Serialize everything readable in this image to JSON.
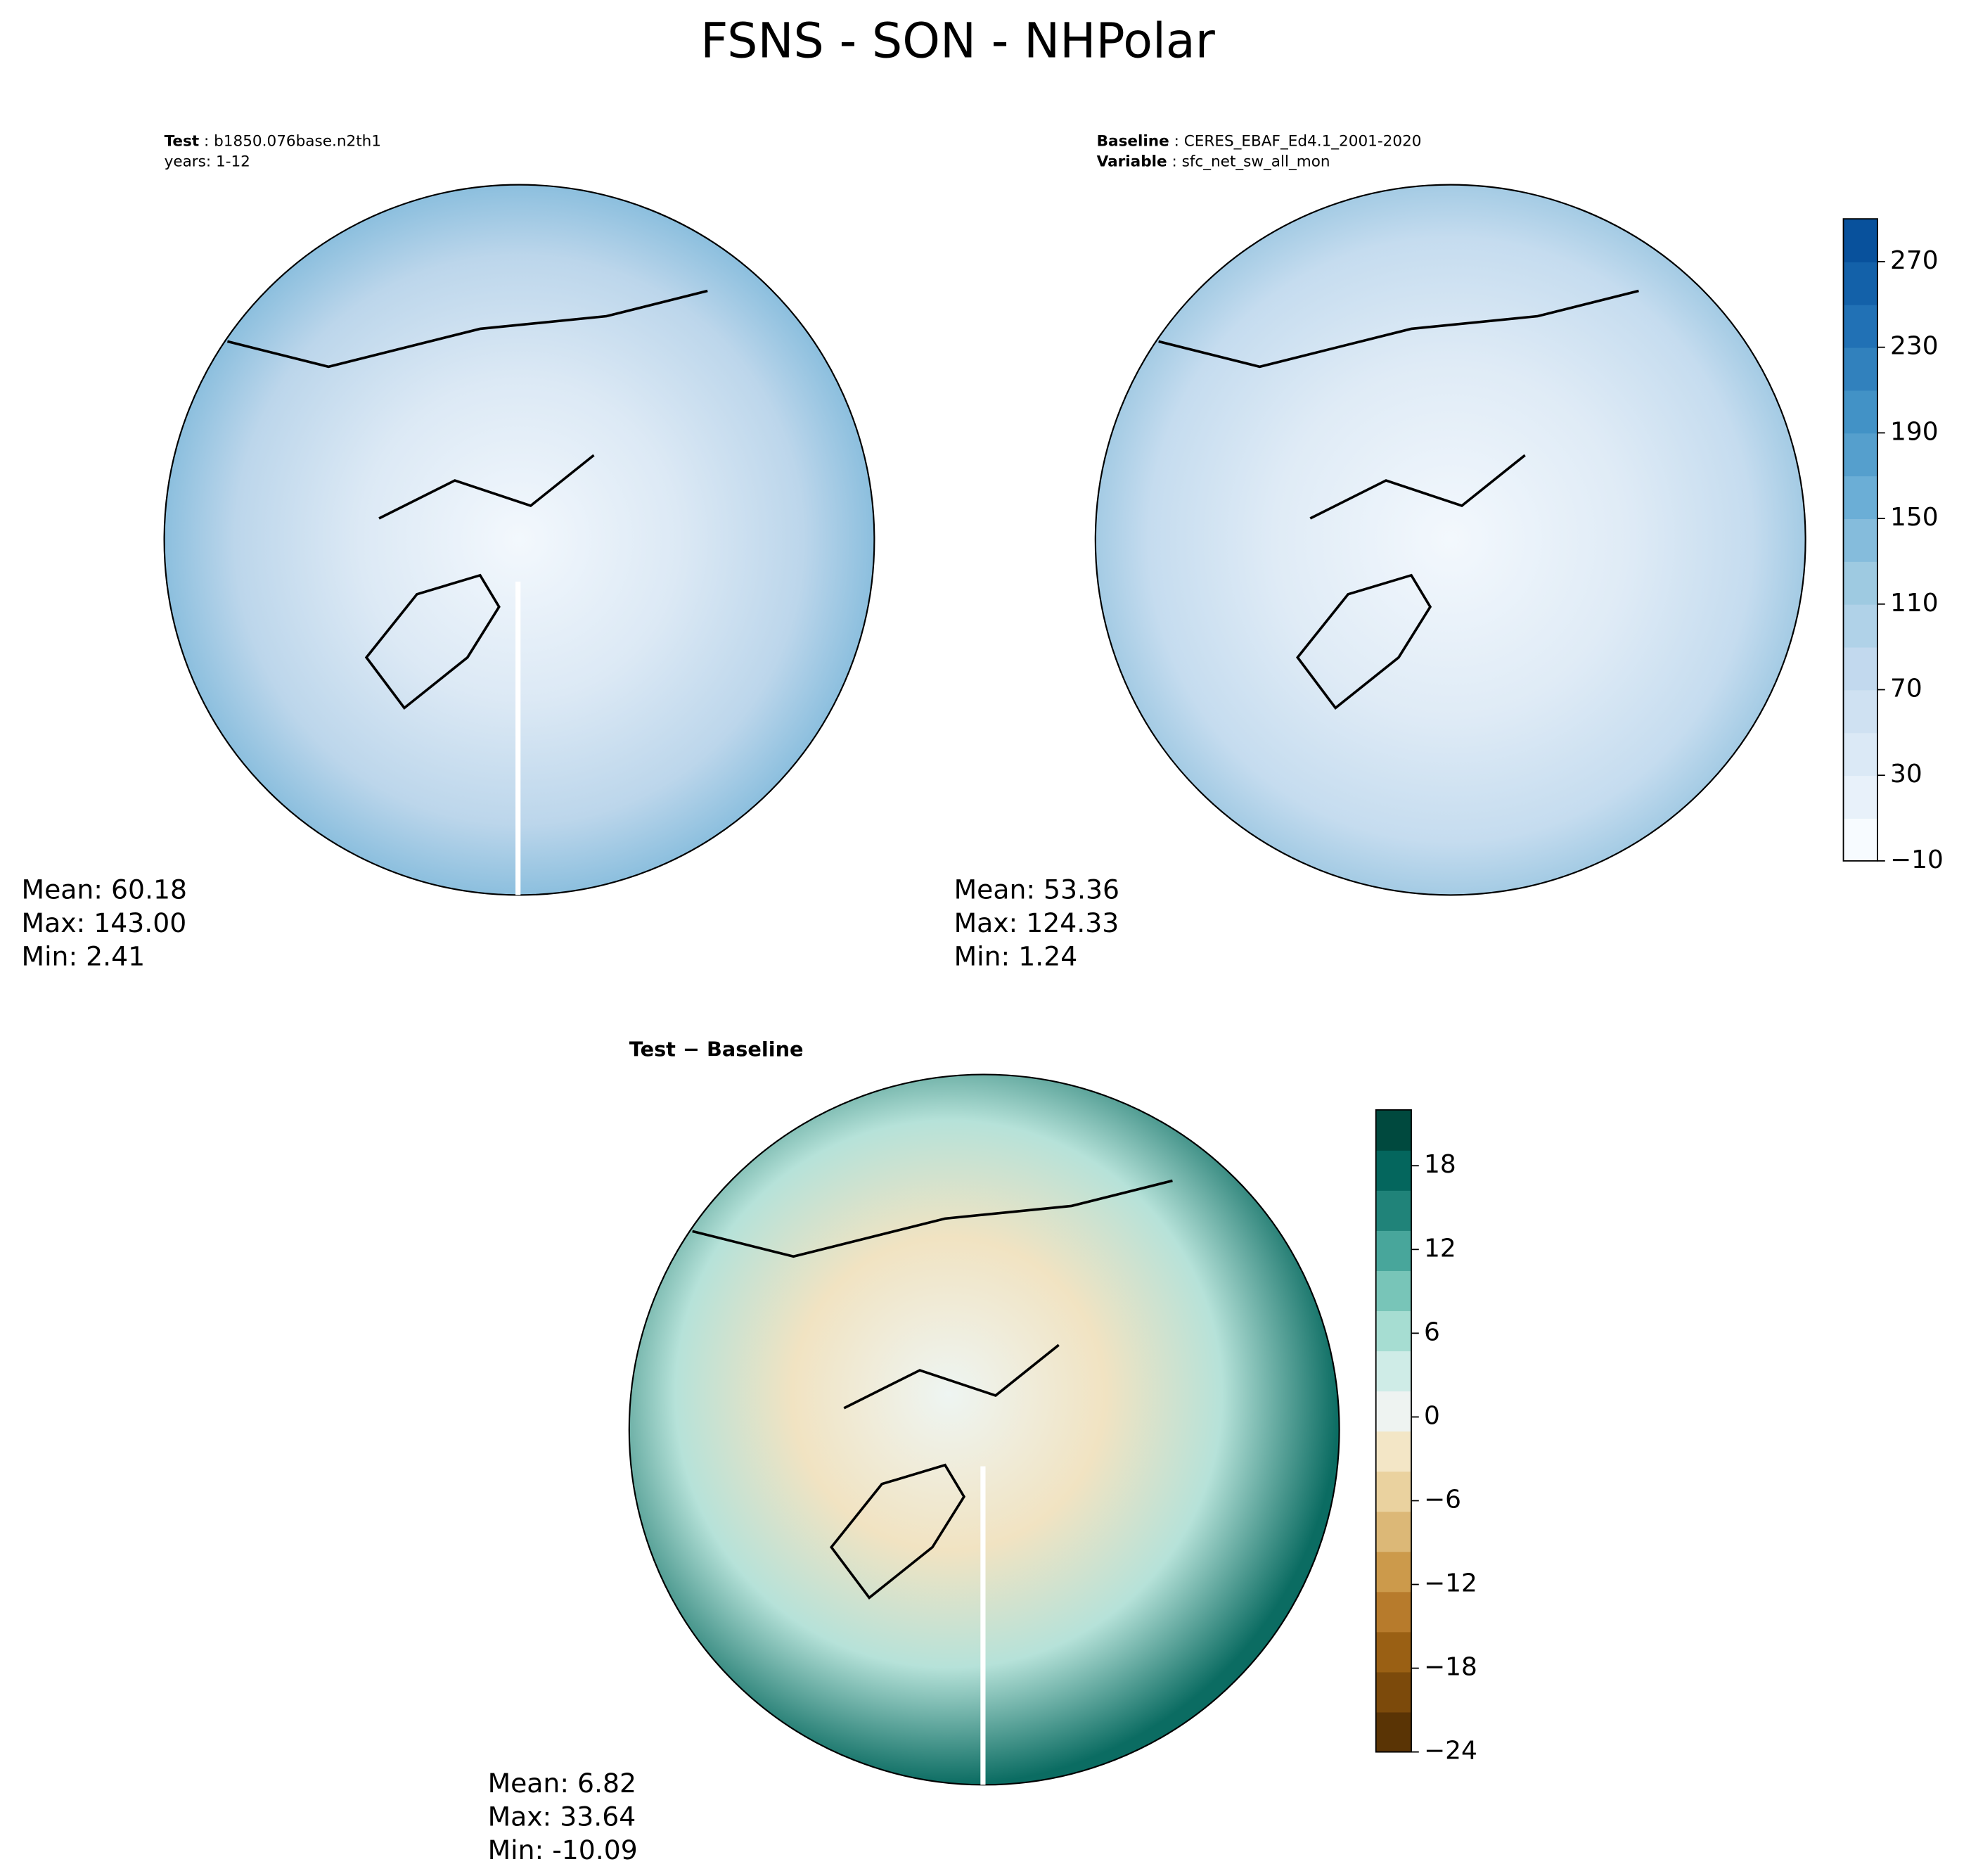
{
  "title": "FSNS - SON - NHPolar",
  "panels": [
    {
      "header": [
        {
          "key": "Test",
          "text": "b1850.076base.n2th1"
        },
        {
          "text": "years: 1-12"
        }
      ],
      "stats": [
        "Mean: 60.18",
        "Max: 143.00",
        "Min:  2.41"
      ]
    },
    {
      "header": [
        {
          "key": "Baseline",
          "text": "CERES_EBAF_Ed4.1_2001-2020"
        },
        {
          "key": "Variable",
          "text": "sfc_net_sw_all_mon"
        }
      ],
      "stats": [
        "Mean: 53.36",
        "Max: 124.33",
        "Min:  1.24"
      ]
    },
    {
      "header": [
        {
          "key": "Test − Baseline"
        }
      ],
      "stats": [
        "Mean:  6.82",
        "Max: 33.64",
        "Min: -10.09"
      ]
    }
  ],
  "colorbars": [
    {
      "ylim": [
        -10,
        290
      ],
      "yticks": [
        {
          "value": -10,
          "label": "−10"
        },
        30,
        70,
        110,
        150,
        190,
        230,
        270
      ],
      "colors": [
        "#f7fbff",
        "#e8f1fa",
        "#dbe9f6",
        "#cfe1f2",
        "#c2d9ee",
        "#b0d2e8",
        "#9ecae1",
        "#85bcdc",
        "#6baed6",
        "#559fcd",
        "#4292c6",
        "#3181bd",
        "#2171b5",
        "#1361a9",
        "#08519c"
      ]
    },
    {
      "ylim": [
        -24,
        22
      ],
      "yticks": [
        {
          "value": -24,
          "label": "−24"
        },
        {
          "value": -18,
          "label": "−18"
        },
        {
          "value": -12,
          "label": "−12"
        },
        {
          "value": -6,
          "label": "−6"
        },
        0,
        6,
        12,
        18
      ],
      "colors": [
        "#5a3405",
        "#7c4a0b",
        "#9a6014",
        "#b77b2c",
        "#cc9a4b",
        "#dcb877",
        "#ead29f",
        "#f3e6c6",
        "#eef3f1",
        "#cfece7",
        "#a6ddd2",
        "#78c5b8",
        "#48a69b",
        "#208379",
        "#04665d",
        "#00493e"
      ]
    }
  ]
}
